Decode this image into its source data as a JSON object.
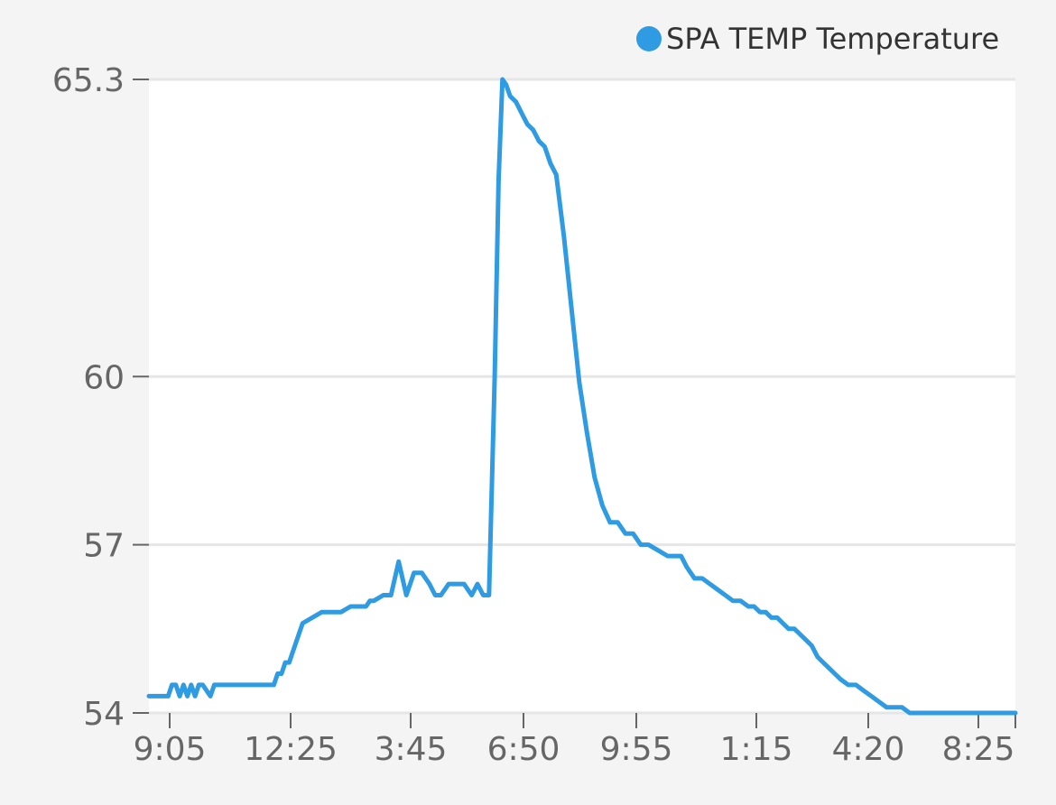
{
  "chart_data": {
    "type": "line",
    "legend_position": "top-right",
    "grid": true,
    "colors": {
      "series": "#2f9be2",
      "plot_bg": "#ffffff",
      "page_bg": "#f4f4f4",
      "grid": "#e6e6e6",
      "axis": "#666666"
    },
    "x_tick_labels": [
      "9:05",
      "12:25",
      "3:45",
      "6:50",
      "9:55",
      "1:15",
      "4:20",
      "8:25"
    ],
    "y_ticks": [
      54,
      57,
      60,
      65.3
    ],
    "y_tick_labels": [
      "54",
      "57",
      "60",
      "65.3"
    ],
    "ylim": [
      54,
      65.3
    ],
    "series": [
      {
        "name": "SPA TEMP Temperature",
        "x": [
          0.0,
          0.38,
          0.5,
          0.6,
          0.7,
          0.8,
          0.9,
          1.0,
          1.1,
          1.2,
          1.3,
          1.4,
          1.6,
          1.7,
          1.8,
          1.9,
          2.0,
          2.05,
          2.1,
          2.15,
          2.2,
          2.3,
          2.4,
          2.5,
          3.15,
          3.25,
          3.35,
          3.45,
          3.55,
          3.65,
          3.75,
          3.85,
          4.0,
          4.5,
          5.0,
          5.25,
          5.5,
          5.65,
          5.75,
          5.85,
          6.1,
          6.3,
          6.5,
          6.7,
          6.9,
          7.1,
          7.3,
          7.45,
          7.6,
          7.8,
          7.97,
          7.99,
          8.0,
          8.2,
          8.4,
          8.55,
          8.7,
          8.85,
          9.0,
          9.1,
          9.2,
          9.3,
          9.4,
          9.55,
          9.7,
          9.85,
          10.0,
          10.15,
          10.3,
          10.45,
          10.6,
          10.8,
          11.0,
          11.2,
          11.4,
          11.6,
          11.8,
          12.0,
          12.2,
          12.4,
          12.6,
          12.8,
          13.0,
          13.25,
          13.5,
          13.7,
          13.85,
          14.0,
          14.2,
          14.4,
          14.6,
          14.8,
          15.0,
          15.2,
          15.4,
          15.6,
          15.75,
          15.9,
          16.05,
          16.2,
          16.35,
          16.5,
          16.65,
          16.8,
          16.95,
          17.1,
          17.25,
          17.4,
          17.55,
          17.7,
          17.85,
          18.0,
          18.2,
          18.4,
          18.6,
          18.8,
          19.0,
          19.2,
          19.4,
          19.6,
          19.8,
          20.0,
          20.2,
          20.4,
          20.6,
          20.8,
          21.0,
          21.2,
          21.4,
          21.6,
          21.8,
          22.0,
          22.2,
          22.4,
          22.55
        ],
        "values": [
          54.3,
          54.3,
          54.3,
          54.5,
          54.5,
          54.3,
          54.5,
          54.3,
          54.5,
          54.3,
          54.5,
          54.5,
          54.3,
          54.5,
          54.5,
          54.5,
          54.5,
          54.5,
          54.5,
          54.5,
          54.5,
          54.5,
          54.5,
          54.5,
          54.5,
          54.5,
          54.7,
          54.7,
          54.9,
          54.9,
          55.1,
          55.3,
          55.6,
          55.8,
          55.8,
          55.9,
          55.9,
          55.9,
          56.0,
          56.0,
          56.1,
          56.1,
          56.7,
          56.1,
          56.5,
          56.5,
          56.3,
          56.1,
          56.1,
          56.3,
          56.3,
          56.3,
          56.3,
          56.3,
          56.1,
          56.3,
          56.1,
          56.1,
          60.0,
          63.5,
          65.3,
          65.2,
          65.0,
          64.9,
          64.7,
          64.5,
          64.4,
          64.2,
          64.1,
          63.8,
          63.6,
          62.5,
          61.2,
          59.9,
          59.0,
          58.2,
          57.7,
          57.4,
          57.4,
          57.2,
          57.2,
          57.0,
          57.0,
          56.9,
          56.8,
          56.8,
          56.8,
          56.6,
          56.4,
          56.4,
          56.3,
          56.2,
          56.1,
          56.0,
          56.0,
          55.9,
          55.9,
          55.8,
          55.8,
          55.7,
          55.7,
          55.6,
          55.5,
          55.5,
          55.4,
          55.3,
          55.2,
          55.0,
          54.9,
          54.8,
          54.7,
          54.6,
          54.5,
          54.5,
          54.4,
          54.3,
          54.2,
          54.1,
          54.1,
          54.1,
          54.0,
          54.0,
          54.0,
          54.0,
          54.0,
          54.0,
          54.0,
          54.0,
          54.0,
          54.0,
          54.0,
          54.0,
          54.0,
          54.0,
          54.0
        ]
      }
    ]
  }
}
